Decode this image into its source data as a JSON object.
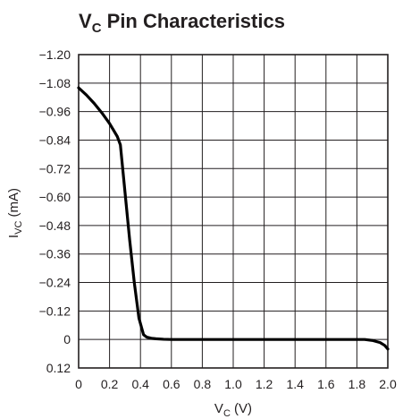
{
  "chart_data": {
    "type": "line",
    "title": {
      "main": "V",
      "sub": "C",
      "rest": " Pin Characteristics"
    },
    "xlabel": {
      "main": "V",
      "sub": "C",
      "rest": " (V)"
    },
    "ylabel": {
      "main": "I",
      "sub": "VC",
      "rest": " (mA)"
    },
    "xlim": [
      0,
      2.0
    ],
    "ylim": [
      -1.2,
      0.12
    ],
    "y_inverted": true,
    "grid": true,
    "xticks": [
      "0",
      "0.2",
      "0.4",
      "0.6",
      "0.8",
      "1.0",
      "1.2",
      "1.4",
      "1.6",
      "1.8",
      "2.0"
    ],
    "xtick_values": [
      0,
      0.2,
      0.4,
      0.6,
      0.8,
      1.0,
      1.2,
      1.4,
      1.6,
      1.8,
      2.0
    ],
    "yticks": [
      "−1.20",
      "−1.08",
      "−0.96",
      "−0.84",
      "−0.72",
      "−0.60",
      "−0.48",
      "−0.36",
      "−0.24",
      "−0.12",
      "0",
      "0.12"
    ],
    "ytick_values": [
      -1.2,
      -1.08,
      -0.96,
      -0.84,
      -0.72,
      -0.6,
      -0.48,
      -0.36,
      -0.24,
      -0.12,
      0,
      0.12
    ],
    "series": [
      {
        "color": "#000000",
        "x": [
          0,
          0.05,
          0.1,
          0.15,
          0.2,
          0.25,
          0.27,
          0.3,
          0.33,
          0.36,
          0.39,
          0.42,
          0.44,
          0.47,
          0.5,
          0.55,
          0.6,
          0.7,
          0.8,
          1.0,
          1.2,
          1.4,
          1.6,
          1.8,
          1.85,
          1.9,
          1.95,
          1.98,
          2.0
        ],
        "y": [
          -1.06,
          -1.03,
          -0.995,
          -0.955,
          -0.91,
          -0.855,
          -0.82,
          -0.62,
          -0.42,
          -0.24,
          -0.09,
          -0.02,
          -0.01,
          -0.005,
          -0.003,
          -0.001,
          0,
          0,
          0,
          0,
          0,
          0,
          0,
          0,
          0,
          0.004,
          0.013,
          0.025,
          0.04
        ]
      }
    ]
  }
}
